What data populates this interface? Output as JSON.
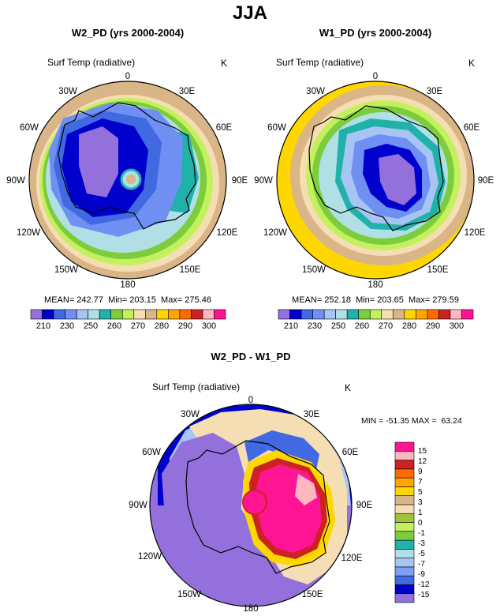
{
  "figure_title": "JJA",
  "colors": {
    "palette_abs": [
      "#9370db",
      "#0000cd",
      "#4169e1",
      "#6f8ff3",
      "#a6c5f2",
      "#b0e0e6",
      "#20b2aa",
      "#7dcc3c",
      "#c4f05f",
      "#f5deb3",
      "#dab587",
      "#ffd700",
      "#ffa500",
      "#ff6a00",
      "#cc2222",
      "#ffb6c1",
      "#ff1493"
    ],
    "palette_diff": [
      "#9370db",
      "#0000cd",
      "#4169e1",
      "#7f9ff3",
      "#a6c5f2",
      "#b0e0e6",
      "#20b2aa",
      "#7dcc3c",
      "#c4f05f",
      "#9fc23c",
      "#f5deb3",
      "#dab587",
      "#ffd700",
      "#ffa500",
      "#ff6a00",
      "#cc2222",
      "#ffb6c1",
      "#ff1493"
    ],
    "coast": "#000000",
    "gridless_ring": "#000000"
  },
  "chart_data": [
    {
      "type": "heatmap",
      "projection": "south-polar-stereographic",
      "title": "W2_PD (yrs 2000-2004)",
      "variable": "Surf Temp (radiative)",
      "units": "K",
      "stats_text": "MEAN= 242.77  Min= 203.15  Max= 275.46",
      "stats": {
        "mean": 242.77,
        "min": 203.15,
        "max": 275.46
      },
      "lon_labels": [
        "0",
        "30E",
        "60E",
        "90E",
        "120E",
        "150E",
        "180",
        "150W",
        "120W",
        "90W",
        "60W",
        "30W"
      ],
      "colorbar_levels": [
        205,
        210,
        215,
        220,
        225,
        230,
        235,
        240,
        245,
        250,
        255,
        260,
        265,
        270,
        275,
        280,
        285,
        290,
        295,
        300,
        305
      ],
      "colorbar_tick_labels": [
        "210",
        "230",
        "250",
        "260",
        "270",
        "280",
        "290",
        "300"
      ],
      "field_levels_outer_to_inner": [
        270,
        265,
        260,
        255,
        250,
        245,
        240,
        230,
        220,
        210
      ]
    },
    {
      "type": "heatmap",
      "projection": "south-polar-stereographic",
      "title": "W1_PD (yrs 2000-2004)",
      "variable": "Surf Temp (radiative)",
      "units": "K",
      "stats_text": "MEAN= 252.18  Min= 203.65  Max= 279.59",
      "stats": {
        "mean": 252.18,
        "min": 203.65,
        "max": 279.59
      },
      "lon_labels": [
        "0",
        "30E",
        "60E",
        "90E",
        "120E",
        "150E",
        "180",
        "150W",
        "120W",
        "90W",
        "60W",
        "30W"
      ],
      "colorbar_levels": [
        205,
        210,
        215,
        220,
        225,
        230,
        235,
        240,
        245,
        250,
        255,
        260,
        265,
        270,
        275,
        280,
        285,
        290,
        295,
        300,
        305
      ],
      "colorbar_tick_labels": [
        "210",
        "230",
        "250",
        "260",
        "270",
        "280",
        "290",
        "300"
      ],
      "field_levels_outer_to_inner": [
        280,
        275,
        270,
        265,
        260,
        255,
        250,
        240,
        230,
        220,
        210
      ]
    },
    {
      "type": "heatmap",
      "projection": "south-polar-stereographic",
      "title": "W2_PD - W1_PD",
      "variable": "Surf Temp (radiative)",
      "units": "K",
      "stats_text": "MIN = -51.35 MAX =  63.24",
      "stats": {
        "min": -51.35,
        "max": 63.24
      },
      "lon_labels": [
        "0",
        "30E",
        "60E",
        "90E",
        "120E",
        "150E",
        "180",
        "150W",
        "120W",
        "90W",
        "60W",
        "30W"
      ],
      "colorbar_levels": [
        -15,
        -12,
        -9,
        -7,
        -5,
        -3,
        -1,
        0,
        1,
        3,
        5,
        7,
        9,
        12,
        15
      ],
      "colorbar_tick_labels": [
        "15",
        "12",
        "9",
        "7",
        "5",
        "3",
        "1",
        "0",
        "-1",
        "-3",
        "-5",
        "-7",
        "-9",
        "-12",
        "-15"
      ],
      "dominant_sign_regions": {
        "west_antarctica_and_ocean": "< -15",
        "east_antarctica_interior": "> 15"
      }
    }
  ]
}
